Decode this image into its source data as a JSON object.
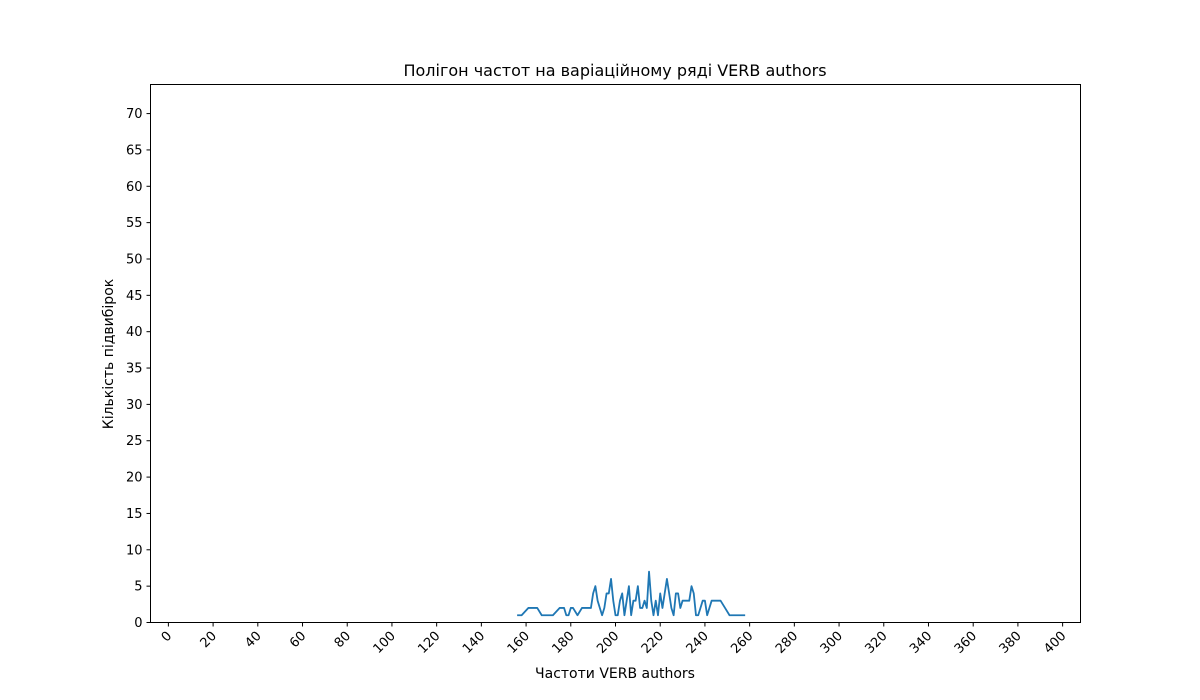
{
  "chart_data": {
    "type": "line",
    "title": "Полігон частот на варіаційному ряді VERB authors",
    "xlabel": "Частоти VERB authors",
    "ylabel": "Кількість підвибірок",
    "xlim": [
      -8,
      408
    ],
    "ylim": [
      0,
      74
    ],
    "x_ticks": [
      0,
      20,
      40,
      60,
      80,
      100,
      120,
      140,
      160,
      180,
      200,
      220,
      240,
      260,
      280,
      300,
      320,
      340,
      360,
      380,
      400
    ],
    "y_ticks": [
      0,
      5,
      10,
      15,
      20,
      25,
      30,
      35,
      40,
      45,
      50,
      55,
      60,
      65,
      70
    ],
    "x_tick_rotation": 45,
    "grid": false,
    "color": "#1f77b4",
    "series": [
      {
        "x": [
          156,
          158,
          161,
          163,
          165,
          167,
          169,
          172,
          175,
          177,
          178,
          179,
          180,
          181,
          183,
          185,
          187,
          189,
          190,
          191,
          192,
          193,
          194,
          195,
          196,
          197,
          198,
          199,
          200,
          201,
          202,
          203,
          204,
          205,
          206,
          207,
          208,
          209,
          210,
          211,
          212,
          213,
          214,
          215,
          216,
          217,
          218,
          219,
          220,
          221,
          222,
          223,
          224,
          225,
          226,
          227,
          228,
          229,
          230,
          231,
          232,
          233,
          234,
          235,
          236,
          237,
          238,
          239,
          240,
          241,
          242,
          243,
          245,
          247,
          249,
          251,
          253,
          255,
          258
        ],
        "y": [
          1,
          1,
          2,
          2,
          2,
          1,
          1,
          1,
          2,
          2,
          1,
          1,
          2,
          2,
          1,
          2,
          2,
          2,
          4,
          5,
          3,
          2,
          1,
          2,
          4,
          4,
          6,
          3,
          1,
          1,
          3,
          4,
          1,
          3,
          5,
          1,
          3,
          3,
          5,
          2,
          2,
          3,
          2,
          7,
          3,
          1,
          3,
          1,
          4,
          2,
          4,
          6,
          4,
          2,
          1,
          4,
          4,
          2,
          3,
          3,
          3,
          3,
          5,
          4,
          1,
          1,
          2,
          3,
          3,
          1,
          2,
          3,
          3,
          3,
          2,
          1,
          1,
          1,
          1
        ]
      }
    ]
  }
}
